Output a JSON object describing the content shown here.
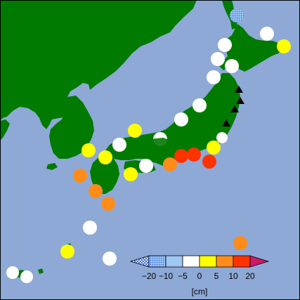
{
  "map": {
    "colors": {
      "sea": "#8ea9d6",
      "land": "#007a00",
      "frame": "#000000"
    },
    "legend": {
      "unit": "[cm]",
      "ticks": [
        "−20",
        "−10",
        "−5",
        "0",
        "5",
        "10",
        "20"
      ],
      "bins": [
        {
          "range": "< −20",
          "color": "#3a6fd6",
          "pattern": "crosshatch"
        },
        {
          "range": "−20 to −10",
          "color": "#3a6fd6",
          "pattern": "dots"
        },
        {
          "range": "−10 to −5",
          "color": "#9ec8f2",
          "pattern": "none"
        },
        {
          "range": "−5 to 0",
          "color": "#ffffff",
          "pattern": "none"
        },
        {
          "range": "0 to 5",
          "color": "#ffff00",
          "pattern": "none"
        },
        {
          "range": "5 to 10",
          "color": "#ff8c1a",
          "pattern": "none"
        },
        {
          "range": "10 to 20",
          "color": "#ff3300",
          "pattern": "none"
        },
        {
          "range": "> 20",
          "color": "#cc1a66",
          "pattern": "none"
        }
      ]
    },
    "stations": [
      {
        "region": "Hokkaido north",
        "category": "−20 to −10",
        "color": "#5a8fe6"
      },
      {
        "region": "Hokkaido northeast",
        "category": "−5 to 0",
        "color": "#ffffff"
      },
      {
        "region": "Hokkaido east",
        "category": "0 to 5",
        "color": "#ffff00"
      },
      {
        "region": "Hokkaido west",
        "category": "−5 to 0",
        "color": "#ffffff"
      },
      {
        "region": "Hokkaido south",
        "category": "−5 to 0",
        "color": "#ffffff"
      },
      {
        "region": "Tohoku Japan Sea",
        "category": "−5 to 0",
        "color": "#ffffff"
      },
      {
        "region": "Sado",
        "category": "−5 to 0",
        "color": "#ffffff"
      },
      {
        "region": "Noto",
        "category": "−5 to 0",
        "color": "#ffffff"
      },
      {
        "region": "San-in",
        "category": "0 to 5",
        "color": "#ffff00"
      },
      {
        "region": "Tsushima",
        "category": "0 to 5",
        "color": "#ffff00"
      },
      {
        "region": "Kanto",
        "category": "0 to 5",
        "color": "#ffff00"
      },
      {
        "region": "Izu",
        "category": "10 to 20",
        "color": "#ff3300"
      },
      {
        "region": "Tokai",
        "category": "10 to 20",
        "color": "#ff3300"
      },
      {
        "region": "Kii",
        "category": "5 to 10",
        "color": "#ff8c1a"
      },
      {
        "region": "Shikoku",
        "category": "−5 to 0",
        "color": "#ffffff"
      },
      {
        "region": "Kyushu west",
        "category": "5 to 10",
        "color": "#ff8c1a"
      },
      {
        "region": "Kyushu south",
        "category": "5 to 10",
        "color": "#ff8c1a"
      },
      {
        "region": "Amami",
        "category": "−5 to 0",
        "color": "#ffffff"
      },
      {
        "region": "Okinawa",
        "category": "0 to 5",
        "color": "#ffff00"
      },
      {
        "region": "Daito",
        "category": "−5 to 0",
        "color": "#ffffff"
      },
      {
        "region": "Sakishima",
        "category": "−5 to 0",
        "color": "#ffffff"
      },
      {
        "region": "Ogasawara",
        "category": "5 to 10",
        "color": "#ff8c1a"
      }
    ],
    "markers": {
      "type": "triangle",
      "color": "#000000",
      "count": 4,
      "region": "Sanriku coast"
    }
  }
}
